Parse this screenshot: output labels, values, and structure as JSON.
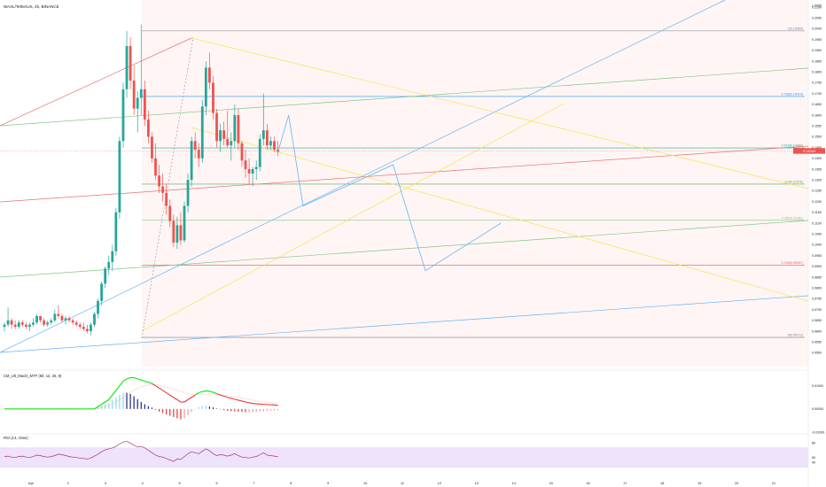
{
  "header": {
    "symbol_title": "WAXL/TetherUS, 4h, BINANCE",
    "macd_title": "CM_Ult_MacD_MTF (60, 12, 26, 9)",
    "rsi_title": "RSI (14, close)"
  },
  "colors": {
    "up": "#26a69a",
    "down": "#ef5350",
    "fib_blue": "#2962ff",
    "trend_yellow": "#f5e54a",
    "trend_red": "#e57373",
    "trend_green": "#81c784",
    "rsi_line": "#9c3b6e",
    "rsi_band": "#eee3fb",
    "macd_up": "#00e600",
    "macd_down": "#e53935"
  },
  "chart_data": {
    "type": "candlestick",
    "price_axis": {
      "labels": [
        "1.0000",
        "0.2100",
        "0.2050",
        "0.2000",
        "0.1950",
        "0.1900",
        "0.1850",
        "0.1800",
        "0.1750",
        "0.1700",
        "0.1650",
        "0.1600",
        "0.1550",
        "0.1500",
        "0.1450",
        "0.1400",
        "0.1350",
        "0.1300",
        "0.1250",
        "0.1200",
        "0.1150",
        "0.1100",
        "0.1050",
        "0.1000",
        "0.0950",
        "0.0900",
        "0.0850",
        "0.0800",
        "0.0750",
        "0.0700",
        "0.0650",
        "0.0600",
        "0.0550",
        "0.0500"
      ],
      "current_price": "0.14343"
    },
    "time_axis": [
      "Apr",
      "2",
      "3",
      "4",
      "5",
      "6",
      "7",
      "8",
      "9",
      "10",
      "11",
      "12",
      "13",
      "14",
      "15",
      "16",
      "17",
      "18",
      "19",
      "20",
      "21"
    ],
    "fib_levels": [
      {
        "label": "1(0.19900)",
        "ratio": 1
      },
      {
        "label": "0.786(0.16410)",
        "ratio": 0.786
      },
      {
        "label": "0.618(0.14490)",
        "ratio": 0.618
      },
      {
        "label": "0.5(0.12976)",
        "ratio": 0.5
      },
      {
        "label": "0.382(0.11462)",
        "ratio": 0.382
      },
      {
        "label": "0.236(0.09557)",
        "ratio": 0.236
      },
      {
        "label": "0(0.05712)",
        "ratio": 0
      }
    ],
    "candles": [
      [
        0.062,
        0.064,
        0.06,
        0.063
      ],
      [
        0.063,
        0.071,
        0.062,
        0.065
      ],
      [
        0.065,
        0.066,
        0.061,
        0.063
      ],
      [
        0.063,
        0.065,
        0.061,
        0.062
      ],
      [
        0.062,
        0.065,
        0.061,
        0.064
      ],
      [
        0.064,
        0.065,
        0.062,
        0.063
      ],
      [
        0.063,
        0.064,
        0.061,
        0.062
      ],
      [
        0.062,
        0.064,
        0.06,
        0.063
      ],
      [
        0.063,
        0.066,
        0.062,
        0.064
      ],
      [
        0.064,
        0.068,
        0.063,
        0.067
      ],
      [
        0.067,
        0.067,
        0.064,
        0.065
      ],
      [
        0.065,
        0.066,
        0.062,
        0.063
      ],
      [
        0.063,
        0.065,
        0.062,
        0.064
      ],
      [
        0.064,
        0.066,
        0.063,
        0.065
      ],
      [
        0.065,
        0.07,
        0.064,
        0.068
      ],
      [
        0.068,
        0.072,
        0.066,
        0.067
      ],
      [
        0.067,
        0.068,
        0.064,
        0.065
      ],
      [
        0.065,
        0.067,
        0.063,
        0.066
      ],
      [
        0.066,
        0.067,
        0.064,
        0.065
      ],
      [
        0.065,
        0.066,
        0.063,
        0.064
      ],
      [
        0.064,
        0.065,
        0.062,
        0.063
      ],
      [
        0.063,
        0.064,
        0.061,
        0.062
      ],
      [
        0.062,
        0.064,
        0.06,
        0.061
      ],
      [
        0.061,
        0.063,
        0.059,
        0.06
      ],
      [
        0.06,
        0.064,
        0.058,
        0.063
      ],
      [
        0.063,
        0.069,
        0.062,
        0.068
      ],
      [
        0.068,
        0.075,
        0.066,
        0.074
      ],
      [
        0.074,
        0.083,
        0.072,
        0.082
      ],
      [
        0.082,
        0.09,
        0.08,
        0.089
      ],
      [
        0.089,
        0.095,
        0.086,
        0.092
      ],
      [
        0.092,
        0.1,
        0.088,
        0.097
      ],
      [
        0.097,
        0.117,
        0.095,
        0.115
      ],
      [
        0.115,
        0.15,
        0.112,
        0.148
      ],
      [
        0.148,
        0.175,
        0.145,
        0.172
      ],
      [
        0.172,
        0.199,
        0.168,
        0.192
      ],
      [
        0.192,
        0.196,
        0.172,
        0.176
      ],
      [
        0.176,
        0.183,
        0.16,
        0.163
      ],
      [
        0.163,
        0.171,
        0.152,
        0.168
      ],
      [
        0.168,
        0.202,
        0.16,
        0.172
      ],
      [
        0.172,
        0.176,
        0.155,
        0.158
      ],
      [
        0.158,
        0.162,
        0.147,
        0.15
      ],
      [
        0.15,
        0.152,
        0.138,
        0.14
      ],
      [
        0.14,
        0.147,
        0.13,
        0.132
      ],
      [
        0.132,
        0.137,
        0.124,
        0.127
      ],
      [
        0.127,
        0.133,
        0.12,
        0.124
      ],
      [
        0.124,
        0.128,
        0.114,
        0.118
      ],
      [
        0.118,
        0.121,
        0.108,
        0.111
      ],
      [
        0.111,
        0.114,
        0.099,
        0.101
      ],
      [
        0.101,
        0.113,
        0.098,
        0.109
      ],
      [
        0.109,
        0.115,
        0.1,
        0.102
      ],
      [
        0.102,
        0.12,
        0.101,
        0.118
      ],
      [
        0.118,
        0.133,
        0.115,
        0.13
      ],
      [
        0.13,
        0.15,
        0.127,
        0.148
      ],
      [
        0.148,
        0.152,
        0.14,
        0.144
      ],
      [
        0.144,
        0.147,
        0.136,
        0.14
      ],
      [
        0.14,
        0.167,
        0.138,
        0.164
      ],
      [
        0.164,
        0.185,
        0.16,
        0.182
      ],
      [
        0.182,
        0.189,
        0.172,
        0.175
      ],
      [
        0.175,
        0.178,
        0.158,
        0.161
      ],
      [
        0.161,
        0.163,
        0.145,
        0.148
      ],
      [
        0.148,
        0.156,
        0.143,
        0.153
      ],
      [
        0.153,
        0.157,
        0.146,
        0.149
      ],
      [
        0.149,
        0.162,
        0.145,
        0.146
      ],
      [
        0.146,
        0.152,
        0.139,
        0.148
      ],
      [
        0.148,
        0.165,
        0.145,
        0.16
      ],
      [
        0.16,
        0.163,
        0.144,
        0.147
      ],
      [
        0.147,
        0.148,
        0.136,
        0.139
      ],
      [
        0.139,
        0.144,
        0.131,
        0.135
      ],
      [
        0.135,
        0.14,
        0.128,
        0.133
      ],
      [
        0.133,
        0.136,
        0.127,
        0.135
      ],
      [
        0.135,
        0.139,
        0.13,
        0.136
      ],
      [
        0.136,
        0.151,
        0.134,
        0.149
      ],
      [
        0.149,
        0.17,
        0.146,
        0.153
      ],
      [
        0.153,
        0.156,
        0.144,
        0.146
      ],
      [
        0.146,
        0.15,
        0.144,
        0.148
      ],
      [
        0.148,
        0.15,
        0.143,
        0.144
      ],
      [
        0.144,
        0.148,
        0.141,
        0.143
      ]
    ],
    "projection_path": [
      {
        "i": 76,
        "p": 0.143
      },
      {
        "i": 79,
        "p": 0.16
      },
      {
        "i": 83,
        "p": 0.118
      },
      {
        "i": 108,
        "p": 0.137
      },
      {
        "i": 117,
        "p": 0.088
      },
      {
        "i": 138,
        "p": 0.11
      }
    ],
    "macd": {
      "axis": [
        "0.01000",
        "0.00000",
        "-0.01000"
      ],
      "line": [
        0,
        0,
        0,
        0,
        0,
        0,
        0,
        0,
        0,
        0,
        0,
        0,
        0,
        0,
        0,
        0,
        0,
        0,
        0,
        0,
        0,
        0,
        0,
        0,
        0,
        0,
        0.001,
        0.002,
        0.003,
        0.004,
        0.006,
        0.008,
        0.01,
        0.012,
        0.013,
        0.0135,
        0.0135,
        0.013,
        0.0125,
        0.012,
        0.0115,
        0.011,
        0.01,
        0.009,
        0.008,
        0.007,
        0.006,
        0.005,
        0.004,
        0.003,
        0.003,
        0.004,
        0.005,
        0.006,
        0.007,
        0.0075,
        0.0078,
        0.0076,
        0.0072,
        0.0066,
        0.006,
        0.0055,
        0.005,
        0.0046,
        0.0042,
        0.0038,
        0.0034,
        0.003,
        0.0027,
        0.0024,
        0.0022,
        0.0021,
        0.002,
        0.0019,
        0.0018,
        0.0017,
        0.0016
      ],
      "signal": [
        0,
        0,
        0,
        0,
        0,
        0,
        0,
        0,
        0,
        0,
        0,
        0,
        0,
        0,
        0,
        0,
        0,
        0,
        0,
        0,
        0,
        0,
        0,
        0,
        0,
        0,
        0.0002,
        0.0006,
        0.001,
        0.0015,
        0.002,
        0.003,
        0.004,
        0.005,
        0.006,
        0.007,
        0.008,
        0.0088,
        0.0095,
        0.01,
        0.0103,
        0.0104,
        0.0104,
        0.0102,
        0.0098,
        0.0094,
        0.009,
        0.0085,
        0.008,
        0.0075,
        0.007,
        0.0066,
        0.0063,
        0.0062,
        0.0062,
        0.0063,
        0.0064,
        0.0065,
        0.0065,
        0.0064,
        0.0062,
        0.006,
        0.0058,
        0.0056,
        0.0053,
        0.005,
        0.0047,
        0.0044,
        0.0041,
        0.0038,
        0.0035,
        0.0032,
        0.003,
        0.0028,
        0.0026,
        0.0024,
        0.0022
      ],
      "hist": [
        0,
        0,
        0,
        0,
        0,
        0,
        0,
        0,
        0,
        0,
        0,
        0,
        0,
        0,
        0,
        0,
        0,
        0,
        0,
        0,
        0,
        0,
        0,
        0,
        0,
        0,
        0.0008,
        0.0014,
        0.002,
        0.0025,
        0.004,
        0.005,
        0.006,
        0.007,
        0.007,
        0.0065,
        0.0055,
        0.0042,
        0.003,
        0.002,
        0.0012,
        0.0006,
        -0.0004,
        -0.0012,
        -0.0018,
        -0.0024,
        -0.003,
        -0.0035,
        -0.004,
        -0.0045,
        -0.004,
        -0.0026,
        -0.0013,
        -0.0002,
        0.0008,
        0.0012,
        0.0014,
        0.0011,
        0.0007,
        0.0002,
        -0.0002,
        -0.0005,
        -0.0008,
        -0.001,
        -0.0011,
        -0.0012,
        -0.0013,
        -0.0014,
        -0.0014,
        -0.0014,
        -0.0013,
        -0.0011,
        -0.001,
        -0.0009,
        -0.0008,
        -0.0007,
        -0.0006
      ]
    },
    "rsi": {
      "axis": [
        "80",
        "50",
        "40"
      ],
      "upper": 70,
      "lower": 30,
      "values": [
        52,
        53,
        51,
        50,
        52,
        53,
        51,
        50,
        52,
        55,
        54,
        52,
        51,
        52,
        54,
        57,
        56,
        54,
        52,
        51,
        50,
        49,
        48,
        47,
        49,
        53,
        57,
        62,
        66,
        68,
        70,
        73,
        78,
        82,
        84,
        80,
        75,
        72,
        73,
        70,
        65,
        60,
        55,
        52,
        51,
        48,
        45,
        42,
        47,
        46,
        52,
        58,
        62,
        60,
        58,
        63,
        68,
        64,
        58,
        54,
        56,
        55,
        53,
        55,
        58,
        54,
        51,
        50,
        49,
        51,
        52,
        56,
        60,
        55,
        54,
        53,
        52
      ]
    }
  }
}
